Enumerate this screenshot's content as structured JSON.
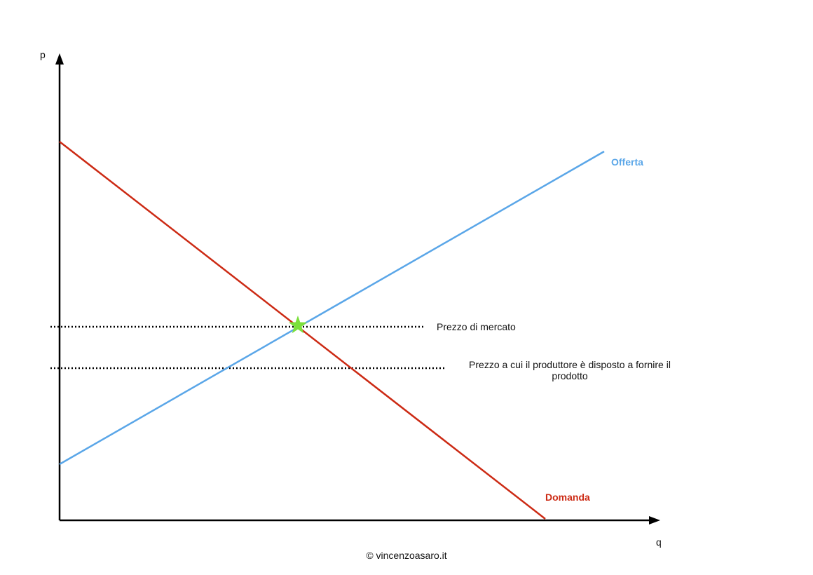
{
  "axes": {
    "y_label": "p",
    "x_label": "q"
  },
  "curves": {
    "supply": "Offerta",
    "demand": "Domanda"
  },
  "annotations": {
    "market_price": "Prezzo di mercato",
    "producer_price": "Prezzo a cui il produttore è disposto a fornire il prodotto"
  },
  "footer": "© vincenzoasaro.it"
}
